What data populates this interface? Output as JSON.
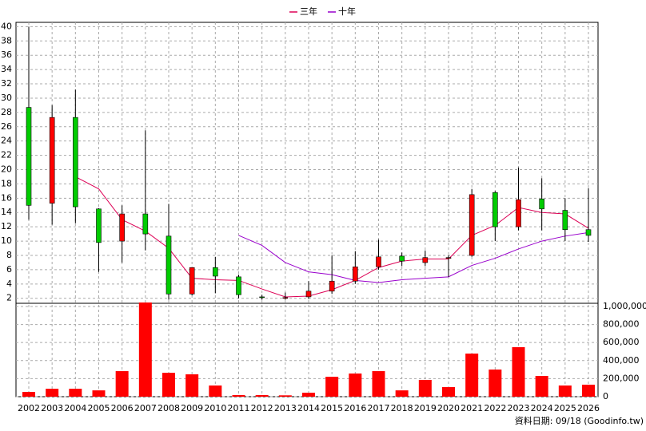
{
  "chart_data": {
    "type": "candlestick",
    "categories": [
      "2002",
      "2003",
      "2004",
      "2005",
      "2006",
      "2007",
      "2008",
      "2009",
      "2010",
      "2011",
      "2012",
      "2013",
      "2014",
      "2015",
      "2016",
      "2017",
      "2018",
      "2019",
      "2020",
      "2021",
      "2022",
      "2023",
      "2024",
      "2025",
      "2026"
    ],
    "open": [
      28.7,
      15.3,
      27.3,
      14.5,
      10,
      13.8,
      10.7,
      2.6,
      6.3,
      5,
      2.2,
      2.1,
      2.2,
      3,
      4.4,
      6.4,
      7.9,
      7,
      7.7,
      8,
      16.8,
      12,
      15.9,
      14.3,
      11.6
    ],
    "close": [
      15,
      27.3,
      14.8,
      9.8,
      13.8,
      11,
      2.6,
      6.3,
      5.1,
      2.5,
      2.1,
      2.1,
      3,
      4.4,
      6.4,
      7.8,
      7.2,
      7.7,
      7.7,
      16.5,
      12,
      15.8,
      14.5,
      11.6,
      10.8
    ],
    "high": [
      40,
      29,
      31.2,
      14.6,
      15,
      25.5,
      15.2,
      6.3,
      7.8,
      5.3,
      2.5,
      2.8,
      4.4,
      8,
      8.6,
      10.2,
      8.4,
      8.7,
      8,
      17.3,
      17,
      20.3,
      18.8,
      16,
      17.4
    ],
    "low": [
      13,
      12.3,
      12.5,
      5.7,
      7,
      8.7,
      1.8,
      2.4,
      2.7,
      2,
      1.8,
      1.8,
      1.9,
      2.6,
      4,
      6,
      6.5,
      6.5,
      5,
      7.8,
      10,
      11.5,
      11.5,
      10,
      9.9
    ],
    "up_color": "#ff0000",
    "down_color": "#00cc00",
    "series": [
      {
        "name": "三年",
        "color": "#dd0055",
        "values": [
          null,
          null,
          19,
          17.3,
          13,
          11.4,
          9,
          4.8,
          4.6,
          4.5,
          3.3,
          2.2,
          2.3,
          3.2,
          4.5,
          6.3,
          7.2,
          7.5,
          7.5,
          10.8,
          12.2,
          14.7,
          14,
          13.8,
          11.8
        ]
      },
      {
        "name": "十年",
        "color": "#9900cc",
        "values": [
          null,
          null,
          null,
          null,
          null,
          null,
          null,
          null,
          null,
          10.8,
          9.4,
          7,
          5.7,
          5.3,
          4.5,
          4.2,
          4.6,
          4.8,
          5,
          6.6,
          7.6,
          8.9,
          10,
          10.7,
          11.2
        ]
      }
    ],
    "ylim": [
      1.3,
      40.6
    ],
    "yticks": [
      2,
      4,
      6,
      8,
      10,
      12,
      14,
      16,
      18,
      20,
      22,
      24,
      26,
      28,
      30,
      32,
      34,
      36,
      38,
      40
    ],
    "volume": {
      "color": "#ff0000",
      "axis": "y2",
      "values": [
        53000,
        88000,
        88000,
        70000,
        283000,
        1044000,
        265000,
        248000,
        124000,
        18000,
        18000,
        15000,
        44000,
        221000,
        257000,
        283000,
        70000,
        186000,
        106000,
        478000,
        301000,
        549000,
        230000,
        124000,
        133000
      ]
    },
    "y2lim": [
      0,
      1035000
    ],
    "y2ticks": [
      0,
      {
        "value": 200000,
        "label": "200,000"
      },
      {
        "value": 400000,
        "label": "400,000"
      },
      {
        "value": 600000,
        "label": "600,000"
      },
      {
        "value": 800000,
        "label": "800,000"
      },
      {
        "value": 1000000,
        "label": "1,000,000"
      }
    ],
    "grid": true,
    "footer": "資料日期: 09/18  (Goodinfo.tw)"
  }
}
